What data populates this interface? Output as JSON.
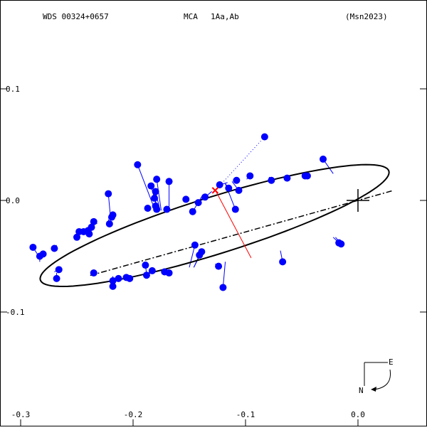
{
  "header": {
    "wds": "WDS 00324+0657",
    "method": "MCA",
    "components": "1Aa,Ab",
    "reference": "(Msn2023)"
  },
  "compass": {
    "east": "E",
    "north": "N"
  },
  "chart_data": {
    "type": "scatter",
    "xlim": [
      -0.3,
      0.06
    ],
    "ylim": [
      -0.19,
      0.18
    ],
    "x_ticks": [
      {
        "value": -0.3,
        "label": "-0.3"
      },
      {
        "value": -0.2,
        "label": "-0.2"
      },
      {
        "value": -0.1,
        "label": "-0.1"
      },
      {
        "value": 0.0,
        "label": "0.0"
      }
    ],
    "y_ticks": [
      {
        "value": 0.1,
        "label": "0.1"
      },
      {
        "value": 0.0,
        "label": "0.0"
      },
      {
        "value": -0.1,
        "label": "-0.1"
      }
    ],
    "primary": {
      "x": 0.0,
      "y": 0.0
    },
    "orbit": {
      "cx": -0.1275,
      "cy": -0.0225,
      "a": 0.1625,
      "b": 0.0255,
      "angle_deg": 17.5
    },
    "line_of_nodes": [
      [
        0.03,
        0.0085
      ],
      [
        -0.239,
        -0.0675
      ]
    ],
    "periastron": [
      [
        -0.127,
        0.0095
      ],
      [
        -0.095,
        -0.0515
      ]
    ],
    "current_position": {
      "x": -0.127,
      "y": 0.009
    },
    "measurements": [
      {
        "obs": [
          -0.083,
          0.057
        ],
        "calc": [
          -0.124,
          0.012
        ],
        "style": "dotted"
      },
      {
        "obs": [
          -0.123,
          0.014
        ],
        "calc": [
          -0.116,
          0.016
        ]
      },
      {
        "obs": [
          -0.108,
          0.018
        ],
        "calc": [
          -0.105,
          0.018
        ]
      },
      {
        "obs": [
          -0.106,
          0.009
        ],
        "calc": [
          -0.112,
          0.017
        ]
      },
      {
        "obs": [
          -0.109,
          -0.008
        ],
        "calc": [
          -0.118,
          0.015
        ]
      },
      {
        "obs": [
          -0.115,
          0.011
        ],
        "calc": [
          -0.118,
          0.015
        ]
      },
      {
        "obs": [
          -0.096,
          0.022
        ],
        "calc": [
          -0.099,
          0.019
        ]
      },
      {
        "obs": [
          -0.077,
          0.018
        ],
        "calc": [
          -0.079,
          0.021
        ]
      },
      {
        "obs": [
          -0.063,
          0.02
        ],
        "calc": [
          -0.063,
          0.022
        ]
      },
      {
        "obs": [
          -0.045,
          0.022
        ],
        "calc": [
          -0.046,
          0.023
        ]
      },
      {
        "obs": [
          -0.047,
          0.022
        ],
        "calc": [
          -0.048,
          0.023
        ]
      },
      {
        "obs": [
          -0.031,
          0.037
        ],
        "calc": [
          -0.022,
          0.024
        ]
      },
      {
        "obs": [
          -0.136,
          0.003
        ],
        "calc": [
          -0.13,
          0.008
        ]
      },
      {
        "obs": [
          -0.142,
          -0.002
        ],
        "calc": [
          -0.135,
          0.006
        ]
      },
      {
        "obs": [
          -0.147,
          -0.01
        ],
        "calc": [
          -0.138,
          0.005
        ]
      },
      {
        "obs": [
          -0.153,
          0.001
        ],
        "calc": [
          -0.15,
          0.0
        ]
      },
      {
        "obs": [
          -0.168,
          0.017
        ],
        "calc": [
          -0.168,
          -0.007
        ]
      },
      {
        "obs": [
          -0.17,
          -0.008
        ],
        "calc": [
          -0.169,
          -0.008
        ]
      },
      {
        "obs": [
          -0.179,
          0.019
        ],
        "calc": [
          -0.175,
          -0.009
        ]
      },
      {
        "obs": [
          -0.18,
          0.008
        ],
        "calc": [
          -0.176,
          -0.009
        ]
      },
      {
        "obs": [
          -0.181,
          0.002
        ],
        "calc": [
          -0.177,
          -0.009
        ]
      },
      {
        "obs": [
          -0.184,
          0.013
        ],
        "calc": [
          -0.178,
          -0.009
        ]
      },
      {
        "obs": [
          -0.196,
          0.032
        ],
        "calc": [
          -0.18,
          -0.01
        ]
      },
      {
        "obs": [
          -0.18,
          -0.005
        ],
        "calc": [
          -0.18,
          -0.009
        ]
      },
      {
        "obs": [
          -0.179,
          -0.008
        ],
        "calc": [
          -0.181,
          -0.009
        ]
      },
      {
        "obs": [
          -0.187,
          -0.007
        ],
        "calc": [
          -0.186,
          -0.01
        ]
      },
      {
        "obs": [
          -0.222,
          0.006
        ],
        "calc": [
          -0.22,
          -0.016
        ]
      },
      {
        "obs": [
          -0.218,
          -0.013
        ],
        "calc": [
          -0.22,
          -0.016
        ]
      },
      {
        "obs": [
          -0.219,
          -0.015
        ],
        "calc": [
          -0.221,
          -0.016
        ]
      },
      {
        "obs": [
          -0.221,
          -0.021
        ],
        "calc": [
          -0.222,
          -0.017
        ]
      },
      {
        "obs": [
          -0.235,
          -0.019
        ],
        "calc": [
          -0.232,
          -0.021
        ]
      },
      {
        "obs": [
          -0.237,
          -0.024
        ],
        "calc": [
          -0.236,
          -0.022
        ]
      },
      {
        "obs": [
          -0.24,
          -0.027
        ],
        "calc": [
          -0.24,
          -0.024
        ]
      },
      {
        "obs": [
          -0.239,
          -0.03
        ],
        "calc": [
          -0.241,
          -0.025
        ]
      },
      {
        "obs": [
          -0.244,
          -0.028
        ],
        "calc": [
          -0.244,
          -0.026
        ]
      },
      {
        "obs": [
          -0.248,
          -0.028
        ],
        "calc": [
          -0.248,
          -0.028
        ]
      },
      {
        "obs": [
          -0.25,
          -0.033
        ],
        "calc": [
          -0.25,
          -0.029
        ]
      },
      {
        "obs": [
          -0.27,
          -0.043
        ],
        "calc": [
          -0.268,
          -0.04
        ]
      },
      {
        "obs": [
          -0.28,
          -0.048
        ],
        "calc": [
          -0.278,
          -0.048
        ]
      },
      {
        "obs": [
          -0.289,
          -0.042
        ],
        "calc": [
          -0.282,
          -0.053
        ]
      },
      {
        "obs": [
          -0.283,
          -0.05
        ],
        "calc": [
          -0.283,
          -0.055
        ]
      },
      {
        "obs": [
          -0.266,
          -0.062
        ],
        "calc": [
          -0.27,
          -0.064
        ]
      },
      {
        "obs": [
          -0.268,
          -0.07
        ],
        "calc": [
          -0.268,
          -0.065
        ]
      },
      {
        "obs": [
          -0.235,
          -0.065
        ],
        "calc": [
          -0.235,
          -0.068
        ]
      },
      {
        "obs": [
          -0.218,
          -0.072
        ],
        "calc": [
          -0.218,
          -0.068
        ]
      },
      {
        "obs": [
          -0.218,
          -0.077
        ],
        "calc": [
          -0.218,
          -0.068
        ]
      },
      {
        "obs": [
          -0.213,
          -0.07
        ],
        "calc": [
          -0.213,
          -0.068
        ]
      },
      {
        "obs": [
          -0.206,
          -0.069
        ],
        "calc": [
          -0.206,
          -0.068
        ]
      },
      {
        "obs": [
          -0.203,
          -0.07
        ],
        "calc": [
          -0.204,
          -0.068
        ]
      },
      {
        "obs": [
          -0.189,
          -0.058
        ],
        "calc": [
          -0.188,
          -0.066
        ]
      },
      {
        "obs": [
          -0.188,
          -0.067
        ],
        "calc": [
          -0.188,
          -0.066
        ]
      },
      {
        "obs": [
          -0.183,
          -0.063
        ],
        "calc": [
          -0.182,
          -0.065
        ]
      },
      {
        "obs": [
          -0.172,
          -0.064
        ],
        "calc": [
          -0.172,
          -0.064
        ]
      },
      {
        "obs": [
          -0.168,
          -0.065
        ],
        "calc": [
          -0.169,
          -0.063
        ]
      },
      {
        "obs": [
          -0.145,
          -0.04
        ],
        "calc": [
          -0.15,
          -0.06
        ]
      },
      {
        "obs": [
          -0.139,
          -0.046
        ],
        "calc": [
          -0.146,
          -0.06
        ]
      },
      {
        "obs": [
          -0.141,
          -0.049
        ],
        "calc": [
          -0.146,
          -0.06
        ]
      },
      {
        "obs": [
          -0.124,
          -0.059
        ],
        "calc": [
          -0.127,
          -0.057
        ]
      },
      {
        "obs": [
          -0.12,
          -0.078
        ],
        "calc": [
          -0.118,
          -0.055
        ]
      },
      {
        "obs": [
          -0.067,
          -0.055
        ],
        "calc": [
          -0.069,
          -0.045
        ]
      },
      {
        "obs": [
          -0.017,
          -0.038
        ],
        "calc": [
          -0.022,
          -0.033
        ]
      },
      {
        "obs": [
          -0.015,
          -0.039
        ],
        "calc": [
          -0.02,
          -0.033
        ]
      }
    ]
  }
}
